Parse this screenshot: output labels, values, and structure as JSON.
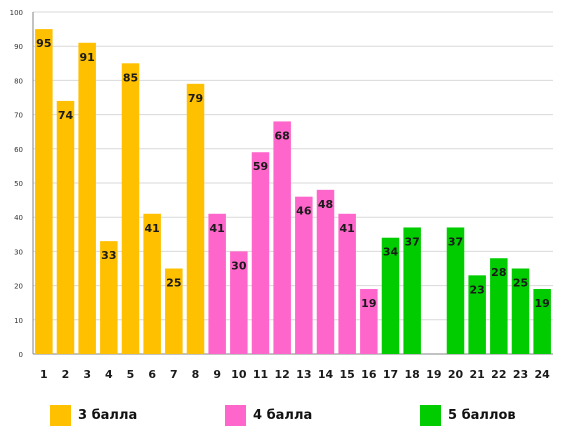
{
  "chart_data": {
    "type": "bar",
    "categories": [
      "1",
      "2",
      "3",
      "4",
      "5",
      "6",
      "7",
      "8",
      "9",
      "10",
      "11",
      "12",
      "13",
      "14",
      "15",
      "16",
      "17",
      "18",
      "19",
      "20",
      "21",
      "22",
      "23",
      "24"
    ],
    "values": [
      95,
      74,
      91,
      33,
      85,
      41,
      25,
      79,
      41,
      30,
      59,
      68,
      46,
      48,
      41,
      19,
      34,
      37,
      null,
      37,
      23,
      28,
      25,
      19
    ],
    "groups": [
      0,
      0,
      0,
      0,
      0,
      0,
      0,
      0,
      1,
      1,
      1,
      1,
      1,
      1,
      1,
      1,
      2,
      2,
      2,
      2,
      2,
      2,
      2,
      2
    ],
    "group_colors": [
      "#ffc000",
      "#ff66cc",
      "#00cc00"
    ],
    "ylim": [
      0,
      100
    ],
    "yticks": [
      0,
      10,
      20,
      30,
      40,
      50,
      60,
      70,
      80,
      90,
      100
    ],
    "grid": true,
    "legend": {
      "position": "bottom",
      "items": [
        {
          "label": "3 балла",
          "color": "#ffc000"
        },
        {
          "label": "4 балла",
          "color": "#ff66cc"
        },
        {
          "label": "5 баллов",
          "color": "#00cc00"
        }
      ]
    }
  }
}
